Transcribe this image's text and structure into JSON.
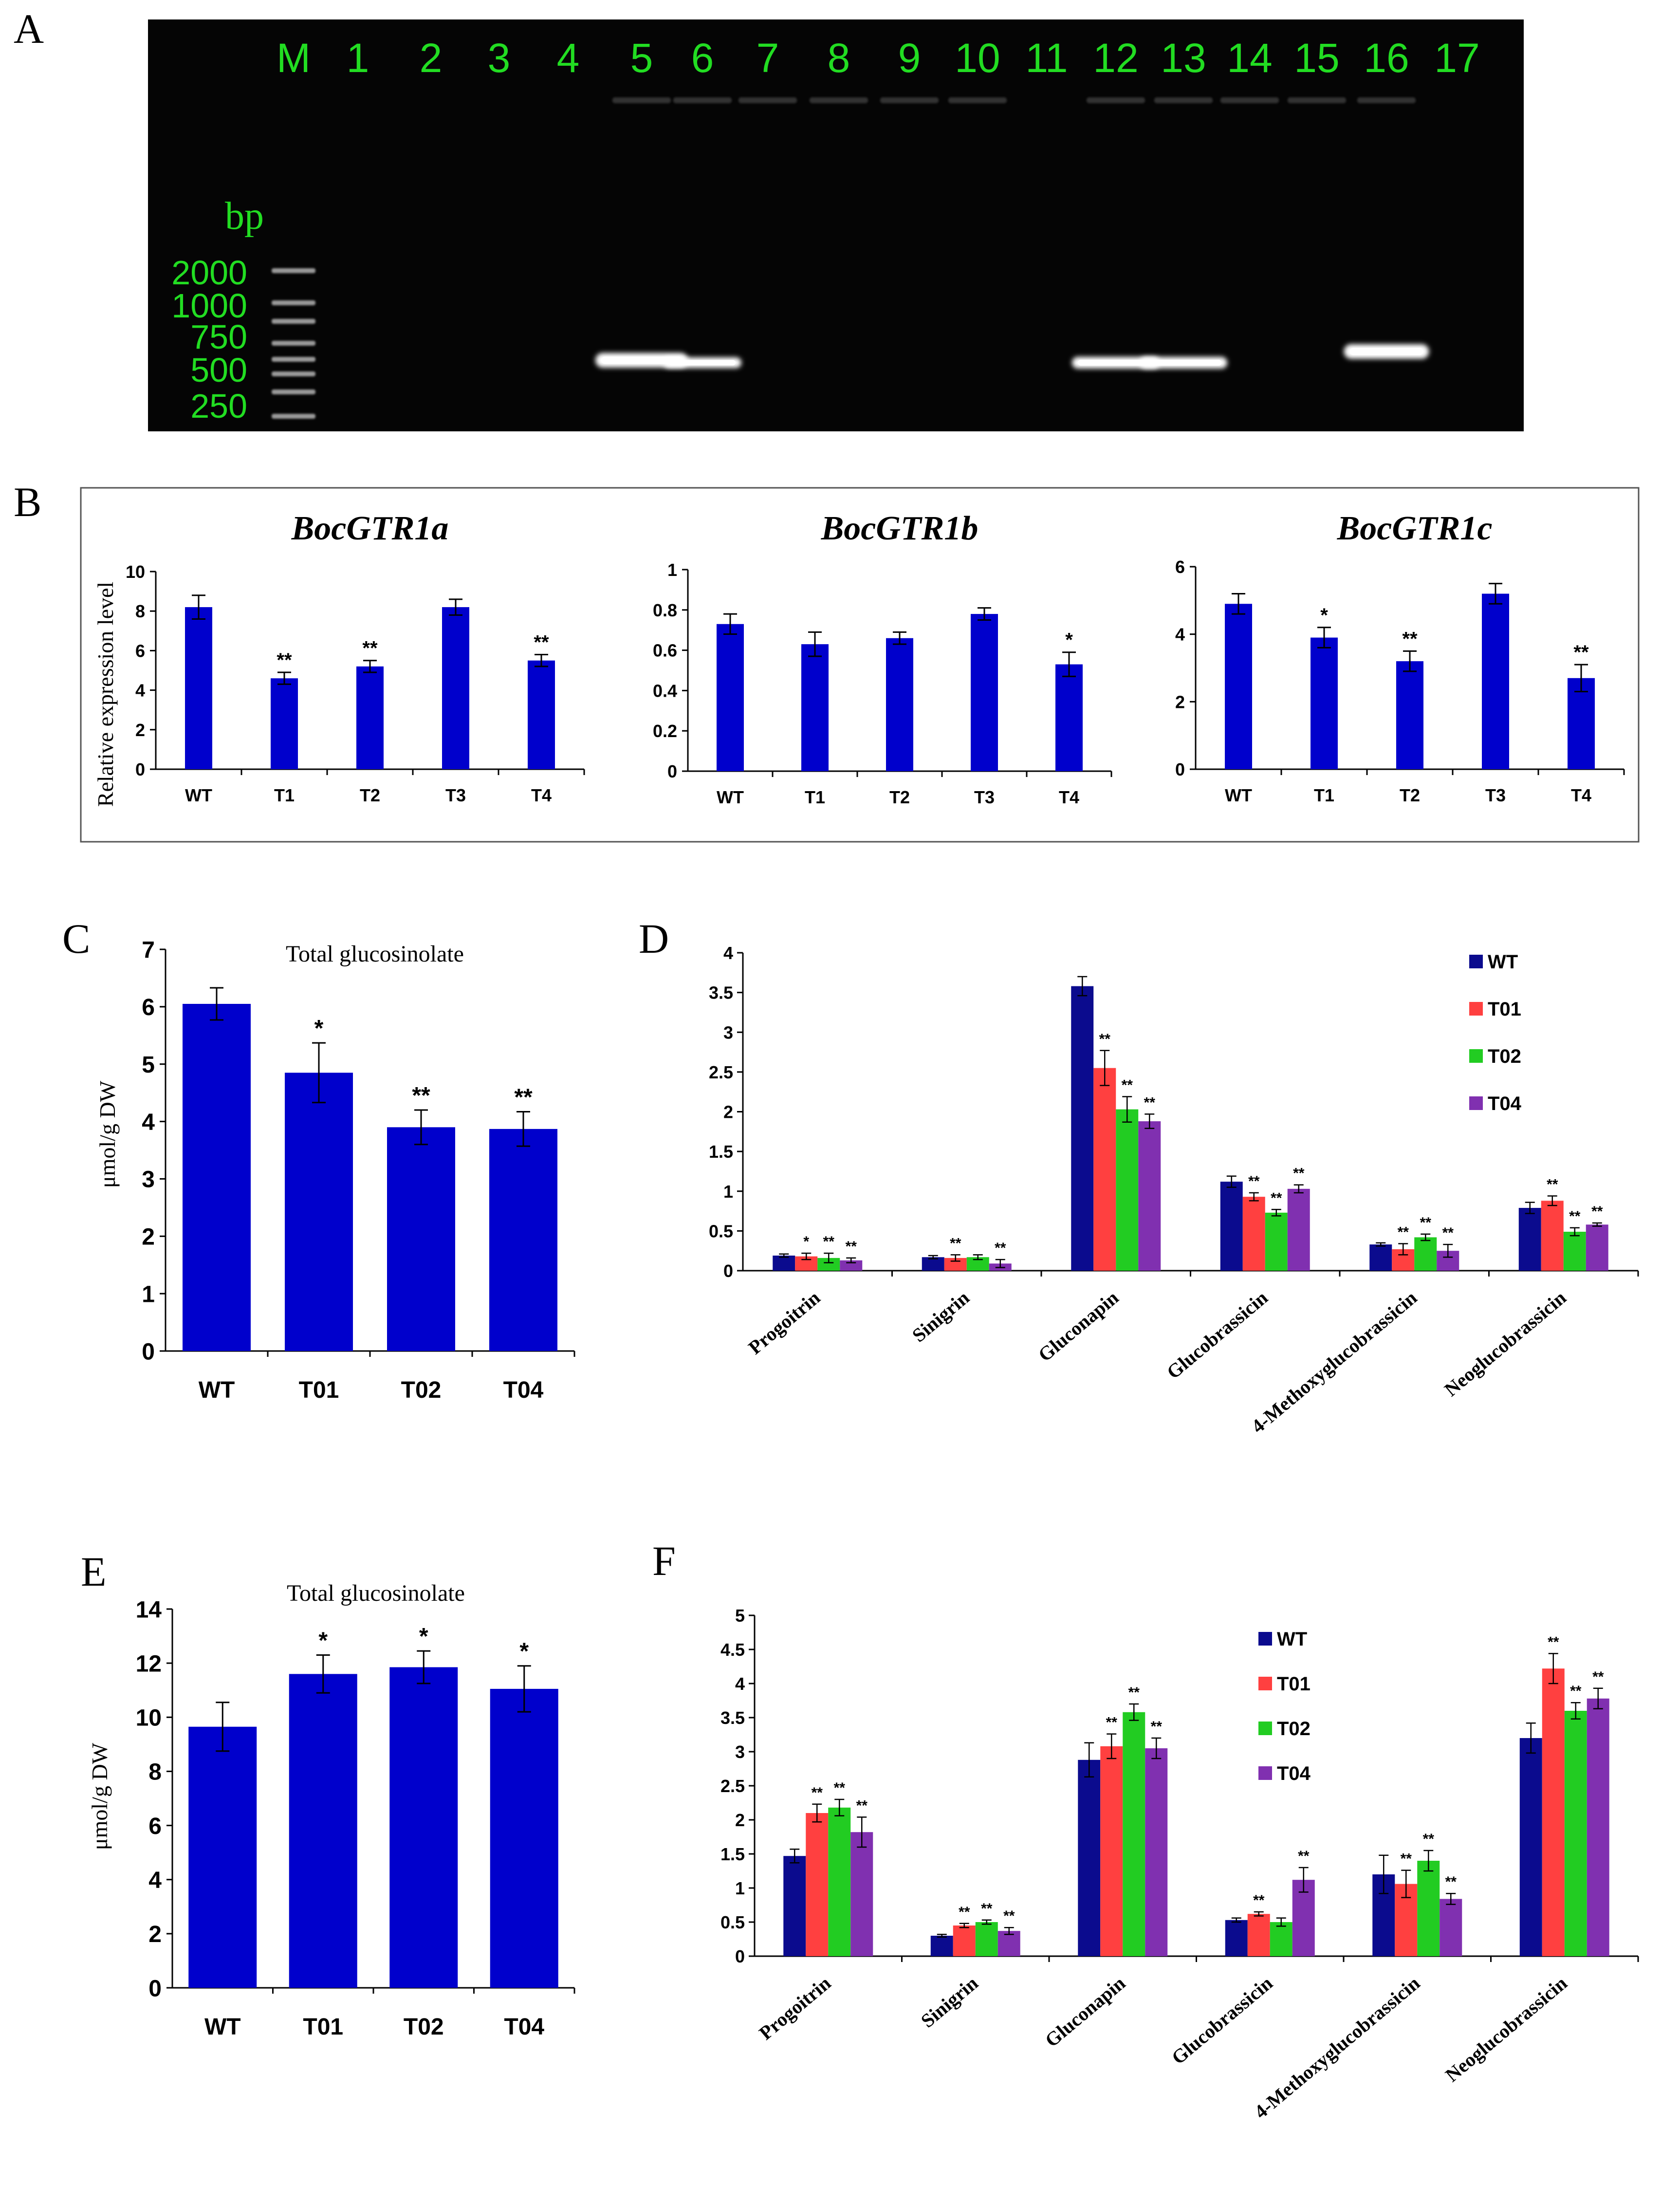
{
  "panels": {
    "a": "A",
    "b": "B",
    "c": "C",
    "d": "D",
    "e": "E",
    "f": "F"
  },
  "gel": {
    "lane_labels": [
      "M",
      "1",
      "2",
      "3",
      "4",
      "5",
      "6",
      "7",
      "8",
      "9",
      "10",
      "11",
      "12",
      "13",
      "14",
      "15",
      "16",
      "17"
    ],
    "unit": "bp",
    "ladder": [
      "2000",
      "1000",
      "750",
      "500",
      "250"
    ],
    "band_lanes": [
      "5",
      "6",
      "12",
      "13",
      "16"
    ]
  },
  "chart_data": [
    {
      "id": "B1",
      "type": "bar",
      "title": "BocGTR1a",
      "ylabel": "Relative expression level",
      "categories": [
        "WT",
        "T1",
        "T2",
        "T3",
        "T4"
      ],
      "values": [
        8.2,
        4.6,
        5.2,
        8.2,
        5.5
      ],
      "errors": [
        0.6,
        0.3,
        0.3,
        0.4,
        0.3
      ],
      "significance": [
        "",
        "**",
        "**",
        "",
        "**"
      ],
      "ylim": [
        0,
        10
      ],
      "yticks": [
        "0",
        "2",
        "4",
        "6",
        "8",
        "10"
      ]
    },
    {
      "id": "B2",
      "type": "bar",
      "title": "BocGTR1b",
      "ylabel": "",
      "categories": [
        "WT",
        "T1",
        "T2",
        "T3",
        "T4"
      ],
      "values": [
        0.73,
        0.63,
        0.66,
        0.78,
        0.53
      ],
      "errors": [
        0.05,
        0.06,
        0.03,
        0.03,
        0.06
      ],
      "significance": [
        "",
        "",
        "",
        "",
        "*"
      ],
      "ylim": [
        0,
        1
      ],
      "yticks": [
        "0",
        "0.2",
        "0.4",
        "0.6",
        "0.8",
        "1"
      ]
    },
    {
      "id": "B3",
      "type": "bar",
      "title": "BocGTR1c",
      "ylabel": "",
      "categories": [
        "WT",
        "T1",
        "T2",
        "T3",
        "T4"
      ],
      "values": [
        4.9,
        3.9,
        3.2,
        5.2,
        2.7
      ],
      "errors": [
        0.3,
        0.3,
        0.3,
        0.3,
        0.4
      ],
      "significance": [
        "",
        "*",
        "**",
        "",
        "**"
      ],
      "ylim": [
        0,
        6
      ],
      "yticks": [
        "0",
        "2",
        "4",
        "6"
      ]
    },
    {
      "id": "C",
      "type": "bar",
      "title": "Total glucosinolate",
      "ylabel": "μmol/g DW",
      "categories": [
        "WT",
        "T01",
        "T02",
        "T04"
      ],
      "values": [
        6.05,
        4.85,
        3.9,
        3.87
      ],
      "errors": [
        0.28,
        0.52,
        0.3,
        0.3
      ],
      "significance": [
        "",
        "*",
        "**",
        "**"
      ],
      "ylim": [
        0,
        7
      ],
      "yticks": [
        "0",
        "1",
        "2",
        "3",
        "4",
        "5",
        "6",
        "7"
      ]
    },
    {
      "id": "D",
      "type": "bar",
      "title": "",
      "ylabel": "",
      "categories": [
        "Progoitrin",
        "Sinigrin",
        "Gluconapin",
        "Glucobrassicin",
        "4-Methoxyglucobrassicin",
        "Neoglucobrassicin"
      ],
      "series": [
        {
          "name": "WT",
          "color": "#0b0b8e",
          "values": [
            0.19,
            0.17,
            3.58,
            1.12,
            0.33,
            0.79
          ],
          "errors": [
            0.02,
            0.02,
            0.12,
            0.07,
            0.02,
            0.07
          ],
          "significance": [
            "",
            "",
            "",
            "",
            "",
            ""
          ]
        },
        {
          "name": "T01",
          "color": "#ff4040",
          "values": [
            0.18,
            0.16,
            2.55,
            0.93,
            0.27,
            0.88
          ],
          "errors": [
            0.04,
            0.04,
            0.22,
            0.05,
            0.07,
            0.06
          ],
          "significance": [
            "*",
            "**",
            "**",
            "**",
            "**",
            "**"
          ]
        },
        {
          "name": "T02",
          "color": "#22cc22",
          "values": [
            0.16,
            0.17,
            2.03,
            0.73,
            0.42,
            0.49
          ],
          "errors": [
            0.06,
            0.03,
            0.16,
            0.04,
            0.04,
            0.05
          ],
          "significance": [
            "**",
            "",
            "**",
            "**",
            "**",
            "**"
          ]
        },
        {
          "name": "T04",
          "color": "#8030b0",
          "values": [
            0.13,
            0.09,
            1.88,
            1.03,
            0.25,
            0.58
          ],
          "errors": [
            0.03,
            0.05,
            0.09,
            0.05,
            0.08,
            0.02
          ],
          "significance": [
            "**",
            "**",
            "**",
            "**",
            "**",
            "**"
          ]
        }
      ],
      "ylim": [
        0,
        4
      ],
      "yticks": [
        "0",
        "0.5",
        "1",
        "1.5",
        "2",
        "2.5",
        "3",
        "3.5",
        "4"
      ]
    },
    {
      "id": "E",
      "type": "bar",
      "title": "Total glucosinolate",
      "ylabel": "μmol/g DW",
      "categories": [
        "WT",
        "T01",
        "T02",
        "T04"
      ],
      "values": [
        9.65,
        11.6,
        11.85,
        11.05
      ],
      "errors": [
        0.9,
        0.7,
        0.6,
        0.85
      ],
      "significance": [
        "",
        "*",
        "*",
        "*"
      ],
      "ylim": [
        0,
        14
      ],
      "yticks": [
        "0",
        "2",
        "4",
        "6",
        "8",
        "10",
        "12",
        "14"
      ]
    },
    {
      "id": "F",
      "type": "bar",
      "title": "",
      "ylabel": "",
      "categories": [
        "Progoitrin",
        "Sinigrin",
        "Gluconapin",
        "Glucobrassicin",
        "4-Methoxyglucobrassicin",
        "Neoglucobrassicin"
      ],
      "series": [
        {
          "name": "WT",
          "color": "#0b0b8e",
          "values": [
            1.47,
            0.3,
            2.88,
            0.53,
            1.2,
            3.2
          ],
          "errors": [
            0.1,
            0.02,
            0.25,
            0.03,
            0.28,
            0.22
          ],
          "significance": [
            "",
            "",
            "",
            "",
            "",
            ""
          ]
        },
        {
          "name": "T01",
          "color": "#ff4040",
          "values": [
            2.1,
            0.45,
            3.08,
            0.62,
            1.06,
            4.22
          ],
          "errors": [
            0.13,
            0.03,
            0.18,
            0.03,
            0.2,
            0.22
          ],
          "significance": [
            "**",
            "**",
            "**",
            "**",
            "**",
            "**"
          ]
        },
        {
          "name": "T02",
          "color": "#22cc22",
          "values": [
            2.18,
            0.5,
            3.58,
            0.5,
            1.4,
            3.6
          ],
          "errors": [
            0.12,
            0.03,
            0.12,
            0.06,
            0.15,
            0.12
          ],
          "significance": [
            "**",
            "**",
            "**",
            "",
            "**",
            "**"
          ]
        },
        {
          "name": "T04",
          "color": "#8030b0",
          "values": [
            1.82,
            0.37,
            3.05,
            1.12,
            0.84,
            3.78
          ],
          "errors": [
            0.22,
            0.05,
            0.15,
            0.18,
            0.08,
            0.15
          ],
          "significance": [
            "**",
            "**",
            "**",
            "**",
            "**",
            "**"
          ]
        }
      ],
      "ylim": [
        0,
        5
      ],
      "yticks": [
        "0",
        "0.5",
        "1",
        "1.5",
        "2",
        "2.5",
        "3",
        "3.5",
        "4",
        "4.5",
        "5"
      ]
    }
  ]
}
